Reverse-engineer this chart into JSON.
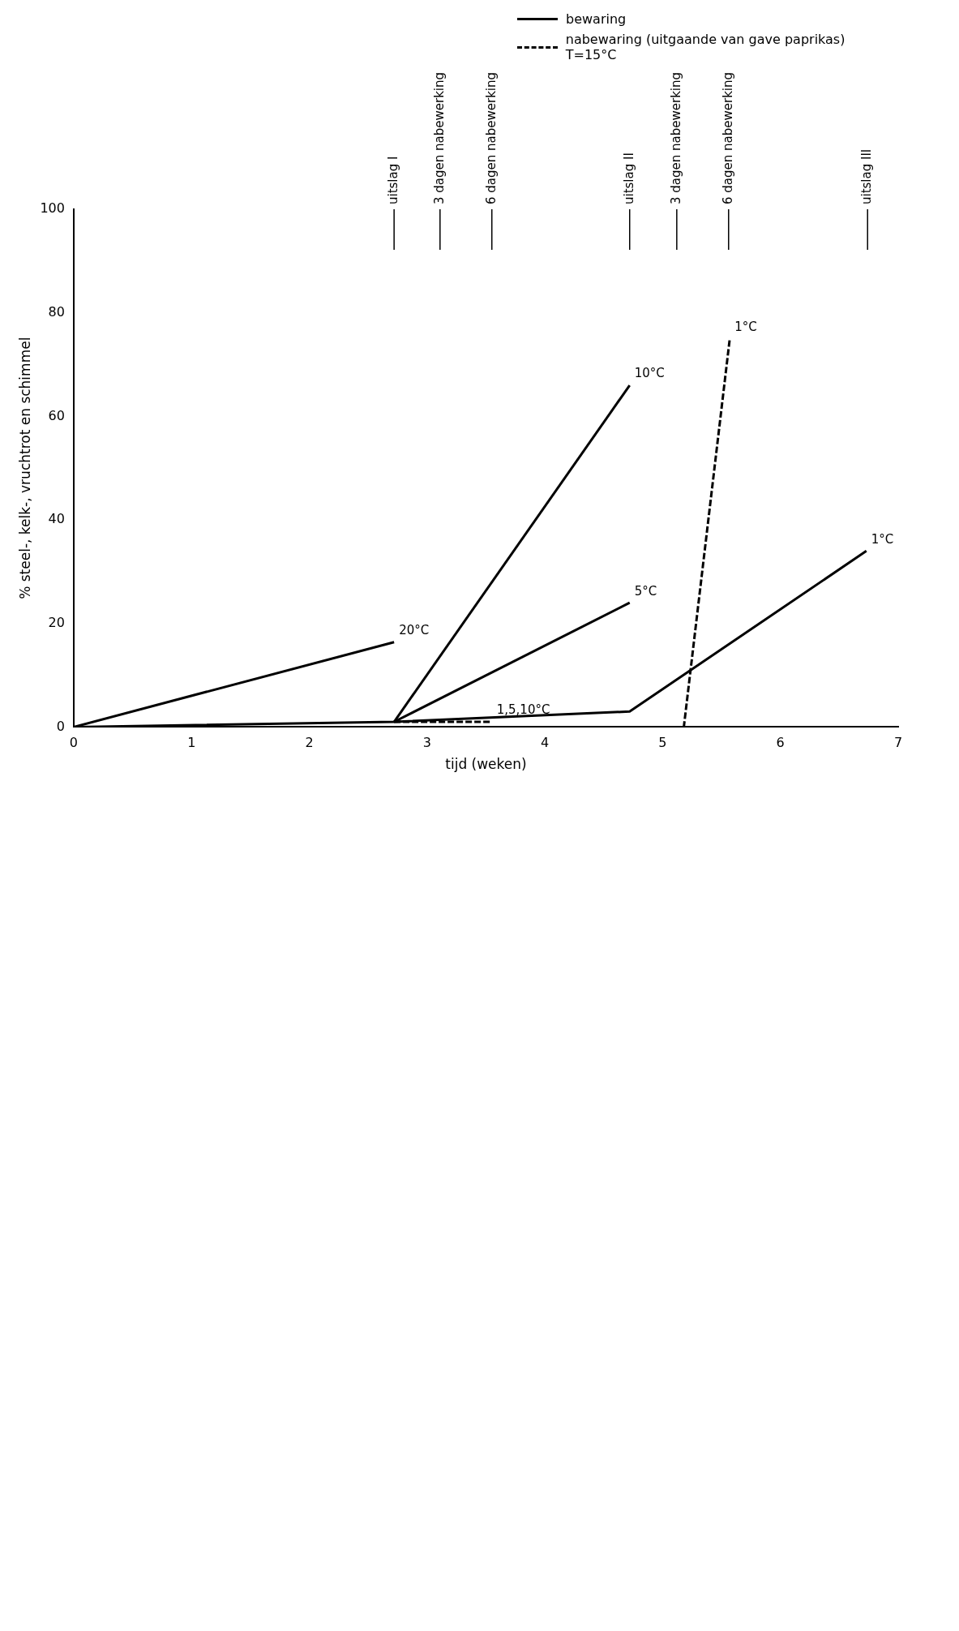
{
  "chart_data": {
    "type": "line",
    "xlabel": "tijd (weken)",
    "ylabel": "% steel-, kelk-, vruchtrot en schimmel",
    "annotations": [
      "bewaring",
      "nabewaring (uitgaande van gave paprikas) T=15°C"
    ],
    "series": [
      {
        "name": "20°C",
        "color": "#000000",
        "line_style": "solid",
        "x": [
          0,
          2.72
        ],
        "values": [
          0,
          16.4
        ]
      },
      {
        "name": "10°C",
        "color": "#000000",
        "line_style": "solid",
        "x": [
          2.72,
          4.72
        ],
        "values": [
          1,
          66
        ]
      },
      {
        "name": "5°C",
        "color": "#000000",
        "line_style": "solid",
        "x": [
          2.72,
          4.72
        ],
        "values": [
          1,
          24
        ]
      },
      {
        "name": "1°C",
        "color": "#000000",
        "line_style": "solid",
        "x": [
          0,
          2.72,
          4.72,
          6.73
        ],
        "values": [
          0,
          1,
          3,
          34
        ]
      },
      {
        "name": "1,5,10°C",
        "color": "#000000",
        "line_style": "dashed",
        "x": [
          2.72,
          3.55
        ],
        "values": [
          1,
          1
        ]
      },
      {
        "name": "1°C",
        "color": "#000000",
        "line_style": "dashed",
        "x": [
          4.72,
          5.18,
          5.57
        ],
        "values": [
          0,
          0,
          75
        ]
      }
    ],
    "ref_lines": [
      {
        "axis": "x",
        "value": 2.72,
        "label": "uitslag I"
      },
      {
        "axis": "x",
        "value": 3.11,
        "label": "3 dagen nabewerking"
      },
      {
        "axis": "x",
        "value": 3.55,
        "label": "6 dagen nabewerking"
      },
      {
        "axis": "x",
        "value": 4.72,
        "label": "uitslag II"
      },
      {
        "axis": "x",
        "value": 5.12,
        "label": "3 dagen nabewerking"
      },
      {
        "axis": "x",
        "value": 5.56,
        "label": "6 dagen nabewerking"
      },
      {
        "axis": "x",
        "value": 6.74,
        "label": "uitslag III"
      }
    ],
    "xlim": [
      0,
      7
    ],
    "xticks": [
      0,
      1,
      2,
      3,
      4,
      5,
      6,
      7
    ],
    "ylim": [
      0,
      100
    ],
    "yticks": [
      0,
      20,
      40,
      60,
      80,
      100
    ],
    "grid": false,
    "legend": "top right",
    "marker": "none"
  }
}
